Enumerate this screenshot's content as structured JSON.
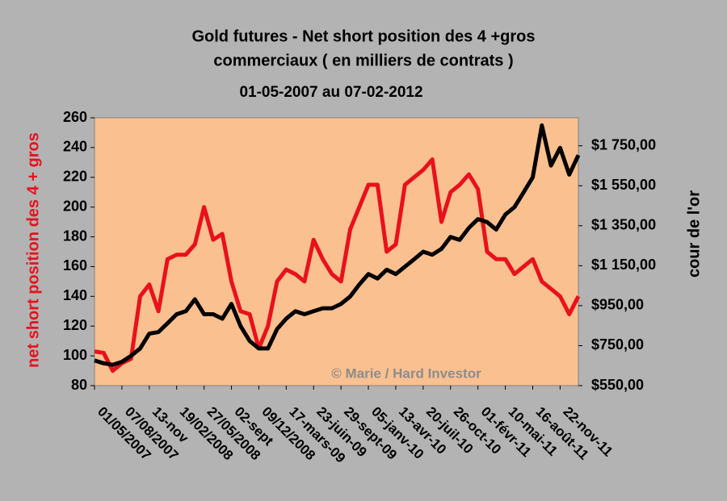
{
  "chart_data": {
    "type": "line",
    "title": [
      "Gold futures - Net short position des 4 +gros",
      "commerciaux ( en milliers de contrats )"
    ],
    "subtitle": "01-05-2007 au 07-02-2012",
    "ylabel": "net short position des 4 + gros",
    "y2label": "cour de l'or",
    "annotation": "© Marie / Hard Investor",
    "categories": [
      "01/05/2007",
      null,
      null,
      "07/08/2007",
      null,
      null,
      "13-nov",
      null,
      null,
      "19/02/2008",
      null,
      null,
      "27/05/2008",
      null,
      null,
      "02-sept",
      null,
      null,
      "09/12/2008",
      null,
      null,
      "17-mars-09",
      null,
      null,
      "23-juin-09",
      null,
      null,
      "29-sept-09",
      null,
      null,
      "05-janv-10",
      null,
      null,
      "13-avr-10",
      null,
      null,
      "20-juil-10",
      null,
      null,
      "26-oct-10",
      null,
      null,
      "01-févr-11",
      null,
      null,
      "10-mai-11",
      null,
      null,
      "16-août-11",
      null,
      null,
      "22-nov-11",
      null,
      null
    ],
    "series": [
      {
        "color": "#e8111c",
        "values": [
          103,
          102,
          90,
          95,
          98,
          140,
          148,
          130,
          165,
          168,
          168,
          175,
          200,
          178,
          182,
          150,
          130,
          128,
          105,
          120,
          150,
          158,
          155,
          150,
          178,
          165,
          155,
          150,
          185,
          200,
          215,
          215,
          170,
          175,
          215,
          220,
          225,
          232,
          190,
          210,
          215,
          222,
          212,
          170,
          165,
          165,
          155,
          160,
          165,
          150,
          145,
          140,
          128,
          140
        ]
      },
      {
        "color": "#000000",
        "axis": "y2",
        "values": [
          676,
          662,
          654,
          669,
          699,
          736,
          810,
          818,
          862,
          907,
          922,
          982,
          907,
          907,
          885,
          959,
          848,
          773,
          736,
          736,
          833,
          885,
          922,
          907,
          922,
          937,
          937,
          959,
          996,
          1056,
          1108,
          1086,
          1130,
          1108,
          1145,
          1182,
          1220,
          1205,
          1234,
          1294,
          1279,
          1339,
          1383,
          1368,
          1331,
          1406,
          1443,
          1517,
          1592,
          1852,
          1651,
          1740,
          1606,
          1703
        ]
      }
    ],
    "ylim": [
      80,
      260
    ],
    "yticks": [
      80,
      100,
      120,
      140,
      160,
      180,
      200,
      220,
      240,
      260
    ],
    "y2lim": [
      550,
      1890
    ],
    "y2ticks": [
      {
        "value": 550,
        "label": "$550,00"
      },
      {
        "value": 750,
        "label": "$750,00"
      },
      {
        "value": 950,
        "label": "$950,00"
      },
      {
        "value": 1150,
        "label": "$1 150,00"
      },
      {
        "value": 1350,
        "label": "$1 350,00"
      },
      {
        "value": 1550,
        "label": "$1 550,00"
      },
      {
        "value": 1750,
        "label": "$1 750,00"
      }
    ],
    "plot_color": "#fbc08f"
  }
}
